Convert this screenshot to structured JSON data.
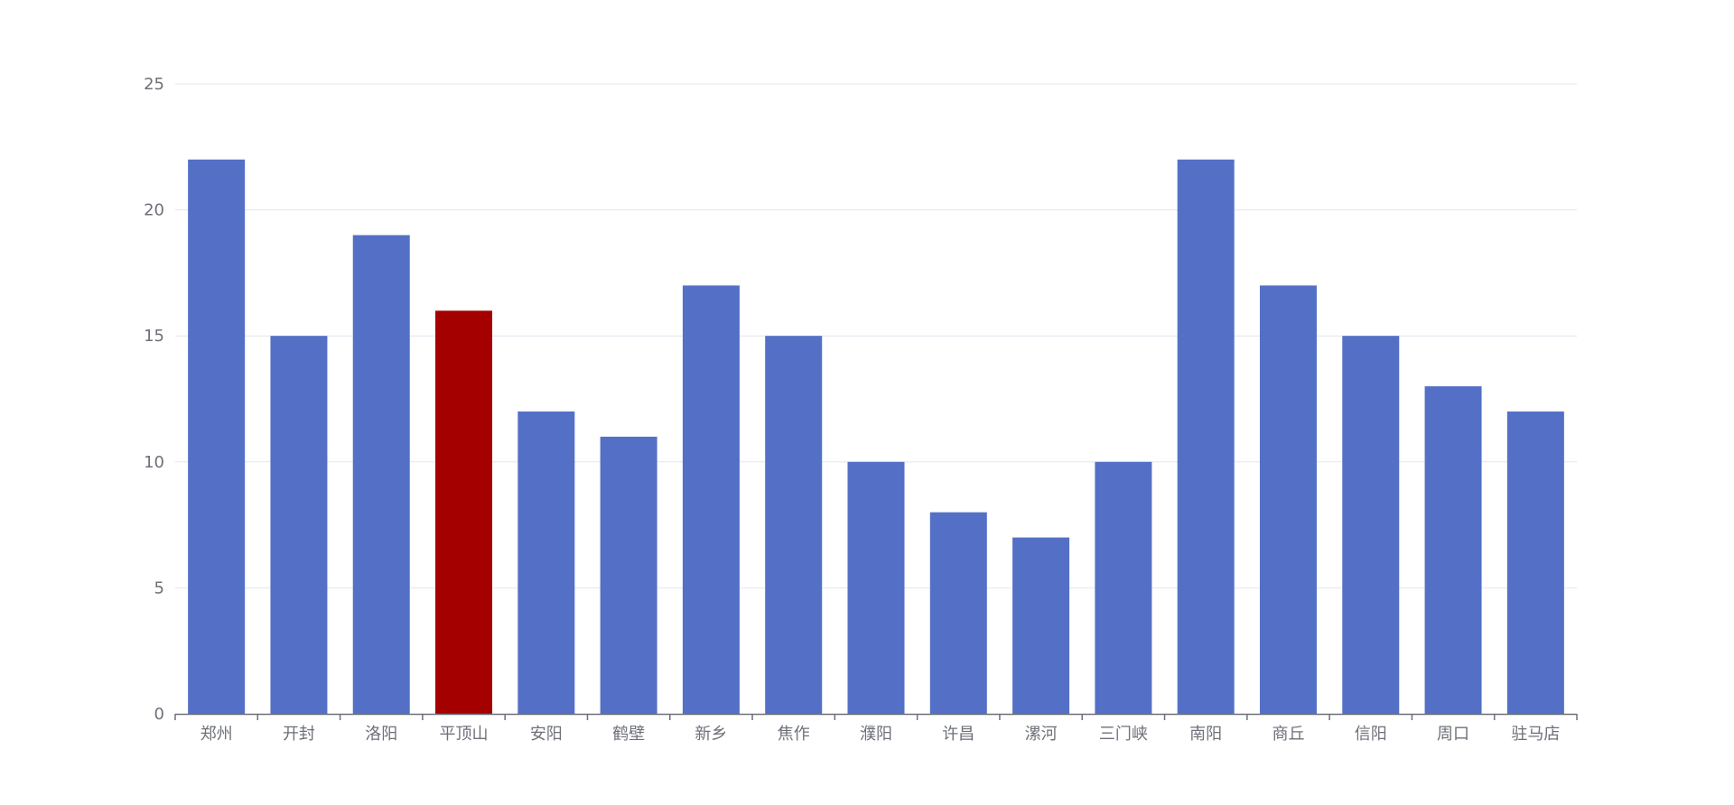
{
  "colors": {
    "bar_default": "#5470c6",
    "bar_highlight": "#a50000",
    "grid": "#e0e6f1",
    "axis": "#6e7079",
    "text": "#6e7079",
    "background": "#ffffff"
  },
  "chart_data": {
    "type": "bar",
    "title": "",
    "xlabel": "",
    "ylabel": "",
    "categories": [
      "郑州",
      "开封",
      "洛阳",
      "平顶山",
      "安阳",
      "鹤壁",
      "新乡",
      "焦作",
      "濮阳",
      "许昌",
      "漯河",
      "三门峡",
      "南阳",
      "商丘",
      "信阳",
      "周口",
      "驻马店"
    ],
    "values": [
      22,
      15,
      19,
      16,
      12,
      11,
      17,
      15,
      10,
      8,
      7,
      10,
      22,
      17,
      15,
      13,
      12
    ],
    "highlight_category": "平顶山",
    "ylim": [
      0,
      25
    ],
    "yticks": [
      0,
      5,
      10,
      15,
      20,
      25
    ],
    "grid": true,
    "legend": "none"
  }
}
